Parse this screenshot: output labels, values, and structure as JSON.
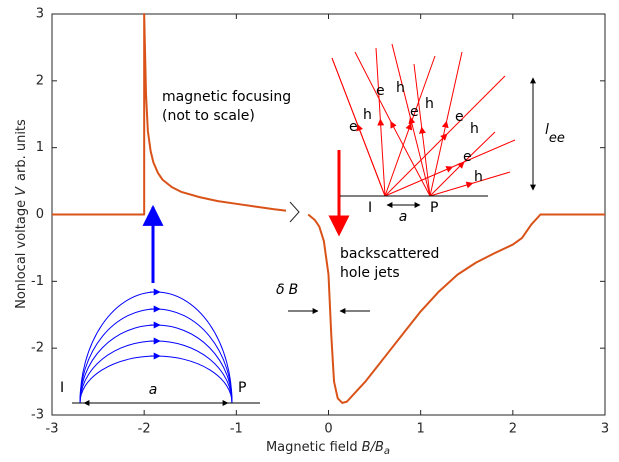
{
  "chart_data": {
    "type": "line",
    "color": "#d95319",
    "x": [
      -3,
      -2.5,
      -2,
      -2,
      -1.99,
      -1.98,
      -1.96,
      -1.93,
      -1.9,
      -1.85,
      -1.8,
      -1.7,
      -1.6,
      -1.4,
      -1.2,
      -1.0,
      -0.8,
      -0.6,
      -0.42,
      -0.3,
      -0.22,
      -0.15,
      -0.1,
      -0.05,
      0,
      0.03,
      0.06,
      0.1,
      0.15,
      0.2,
      0.3,
      0.4,
      0.6,
      0.8,
      1.0,
      1.2,
      1.4,
      1.6,
      1.8,
      2.0,
      2.1,
      2.2,
      2.3,
      2.4,
      3
    ],
    "values": [
      0,
      0,
      0,
      3,
      2.4,
      1.8,
      1.25,
      0.95,
      0.78,
      0.62,
      0.52,
      0.41,
      0.34,
      0.26,
      0.2,
      0.16,
      0.12,
      0.08,
      0.05,
      null,
      0,
      -0.08,
      -0.18,
      -0.4,
      -0.9,
      -1.8,
      -2.5,
      -2.75,
      -2.82,
      -2.8,
      -2.65,
      -2.5,
      -2.15,
      -1.8,
      -1.45,
      -1.15,
      -0.9,
      -0.72,
      -0.58,
      -0.45,
      -0.35,
      -0.15,
      0,
      0,
      0
    ],
    "xlim": [
      -3,
      3
    ],
    "ylim": [
      -3,
      3
    ],
    "xticks": [
      -3,
      -2,
      -1,
      0,
      1,
      2,
      3
    ],
    "yticks": [
      -3,
      -2,
      -1,
      0,
      1,
      2,
      3
    ],
    "xlabel": {
      "text": "Magnetic field",
      "symbol": "B/B",
      "subscript": "a"
    },
    "ylabel": {
      "text": "Nonlocal voltage",
      "symbol": "V",
      "unit": "arb. units"
    },
    "annotations": {
      "focusing_1": "magnetic focusing",
      "focusing_2": "(not to scale)",
      "backscatter_1": "backscattered",
      "backscatter_2": "hole jets",
      "delta": "δ",
      "delta_b": "B",
      "inject": "I",
      "collect": "P",
      "distance": "a",
      "carriers": [
        "e",
        "h",
        "e",
        "h",
        "e",
        "h",
        "e",
        "h",
        "e",
        "h"
      ],
      "length": "l",
      "length_sub": "ee"
    }
  }
}
